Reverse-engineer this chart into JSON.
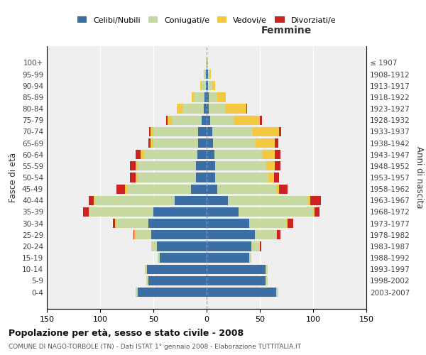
{
  "age_groups": [
    "100+",
    "95-99",
    "90-94",
    "85-89",
    "80-84",
    "75-79",
    "70-74",
    "65-69",
    "60-64",
    "55-59",
    "50-54",
    "45-49",
    "40-44",
    "35-39",
    "30-34",
    "25-29",
    "20-24",
    "15-19",
    "10-14",
    "5-9",
    "0-4"
  ],
  "birth_years": [
    "≤ 1907",
    "1908-1912",
    "1913-1917",
    "1918-1922",
    "1923-1927",
    "1928-1932",
    "1933-1937",
    "1938-1942",
    "1943-1947",
    "1948-1952",
    "1953-1957",
    "1958-1962",
    "1963-1967",
    "1968-1972",
    "1973-1977",
    "1978-1982",
    "1983-1987",
    "1988-1992",
    "1993-1997",
    "1998-2002",
    "2003-2007"
  ],
  "m_cel": [
    0,
    1,
    1,
    2,
    3,
    5,
    8,
    8,
    9,
    10,
    10,
    15,
    30,
    50,
    55,
    52,
    47,
    44,
    56,
    55,
    65
  ],
  "m_con": [
    1,
    2,
    4,
    10,
    20,
    28,
    42,
    42,
    50,
    55,
    55,
    60,
    75,
    60,
    30,
    15,
    5,
    2,
    2,
    2,
    2
  ],
  "m_ved": [
    0,
    0,
    1,
    2,
    5,
    4,
    3,
    3,
    3,
    2,
    2,
    2,
    1,
    1,
    1,
    1,
    0,
    0,
    0,
    0,
    0
  ],
  "m_div": [
    0,
    0,
    0,
    0,
    0,
    1,
    1,
    2,
    5,
    5,
    5,
    8,
    5,
    5,
    2,
    1,
    0,
    0,
    0,
    0,
    0
  ],
  "f_nub": [
    0,
    1,
    1,
    2,
    2,
    3,
    5,
    6,
    7,
    8,
    8,
    10,
    20,
    30,
    40,
    45,
    42,
    40,
    55,
    55,
    65
  ],
  "f_con": [
    1,
    2,
    4,
    8,
    15,
    22,
    38,
    40,
    45,
    48,
    50,
    55,
    75,
    70,
    35,
    20,
    8,
    2,
    2,
    2,
    2
  ],
  "f_ved": [
    0,
    1,
    3,
    8,
    20,
    25,
    25,
    18,
    12,
    8,
    5,
    3,
    2,
    1,
    1,
    1,
    0,
    0,
    0,
    0,
    0
  ],
  "f_div": [
    0,
    0,
    0,
    0,
    1,
    2,
    2,
    3,
    5,
    5,
    5,
    8,
    10,
    5,
    5,
    3,
    1,
    0,
    0,
    0,
    0
  ],
  "colors": {
    "celibi": "#3B6EA5",
    "coniugati": "#C5D9A0",
    "vedovi": "#F5C842",
    "divorziati": "#CC2222"
  },
  "xlim": 150,
  "title": "Popolazione per età, sesso e stato civile - 2008",
  "subtitle": "COMUNE DI NAGO-TORBOLE (TN) - Dati ISTAT 1° gennaio 2008 - Elaborazione TUTTITALIA.IT",
  "ylabel_left": "Fasce di età",
  "ylabel_right": "Anni di nascita",
  "xlabel_right": "Femmine",
  "legend_labels": [
    "Celibi/Nubili",
    "Coniugati/e",
    "Vedovi/e",
    "Divorziati/e"
  ]
}
